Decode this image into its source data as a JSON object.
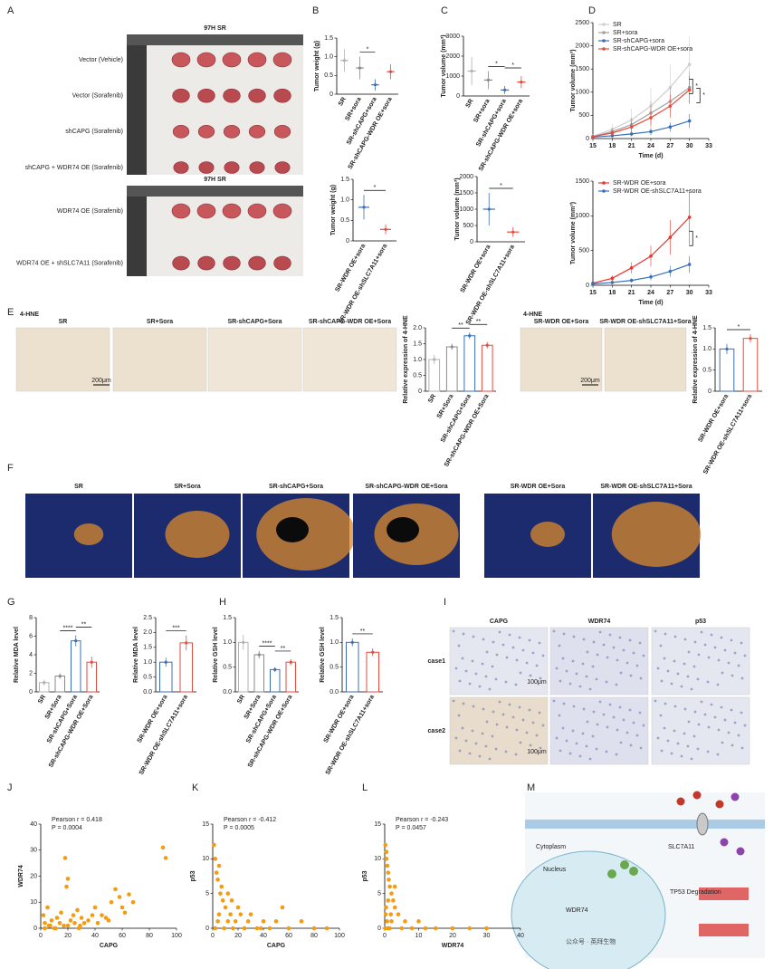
{
  "figure": {
    "panel_labels": [
      "A",
      "B",
      "C",
      "D",
      "E",
      "F",
      "G",
      "H",
      "I",
      "J",
      "K",
      "L",
      "M"
    ],
    "a": {
      "titles": [
        "97H SR",
        "97H SR"
      ],
      "rows": [
        "Vector (Vehicle)",
        "Vector (Sorafenib)",
        "shCAPG (Sorafenib)",
        "shCAPG + WDR74 OE (Sorafenib)",
        "WDR74 OE (Sorafenib)",
        "WDR74 OE + shSLC7A11 (Sorafenib)"
      ]
    },
    "e": {
      "stain": [
        "4-HNE",
        "4-HNE"
      ],
      "images": [
        "SR",
        "SR+Sora",
        "SR-shCAPG+Sora",
        "SR-shCAPG-WDR OE+Sora",
        "SR-WDR OE+Sora",
        "SR-WDR OE-shSLC7A11+Sora"
      ],
      "scale": [
        "200μm",
        "200μm"
      ]
    },
    "f": {
      "images": [
        "SR",
        "SR+Sora",
        "SR-shCAPG+Sora",
        "SR-shCAPG-WDR OE+Sora",
        "SR-WDR OE+Sora",
        "SR-WDR OE-shSLC7A11+Sora"
      ]
    },
    "i": {
      "columns": [
        "CAPG",
        "WDR74",
        "p53"
      ],
      "rows": [
        "case1",
        "case2"
      ],
      "scale": [
        "100μm",
        "100μm"
      ]
    },
    "m": {
      "labels": [
        "Cytoplasm",
        "Nucleus",
        "TP53 Degradation",
        "SLC7A11",
        "WDR74"
      ]
    },
    "watermark": "公众号 · 英拜生物"
  },
  "chart_data": [
    {
      "type": "dot",
      "ylabel": "Tumor weight (g)",
      "categories": [
        "SR",
        "SR+sora",
        "SR-shCAPG+sora",
        "SR-shCAPG-WDR OE+sora"
      ],
      "values": [
        0.9,
        0.7,
        0.25,
        0.6
      ],
      "errors": [
        0.3,
        0.3,
        0.15,
        0.2
      ],
      "colors": [
        "#b0b0b0",
        "#8a8a8a",
        "#3a6fb5",
        "#e64b3c"
      ],
      "ylim": [
        0,
        1.5
      ],
      "yticks": [
        0,
        0.5,
        {
          "value": 1,
          "label": "1.0"
        },
        1.5
      ],
      "brackets": [
        {
          "label": "*",
          "pair": [
            1,
            2
          ]
        }
      ]
    },
    {
      "type": "dot",
      "ylabel": "Tumor weight (g)",
      "categories": [
        "SR-WDR OE+sora",
        "SR-WDR OE-shSLC7A11+sora"
      ],
      "values": [
        0.82,
        0.28
      ],
      "errors": [
        0.3,
        0.12
      ],
      "colors": [
        "#3a6fb5",
        "#e64b3c"
      ],
      "ylim": [
        0,
        1.5
      ],
      "yticks": [
        0,
        0.5,
        {
          "value": 1,
          "label": "1.0"
        },
        1.5
      ],
      "brackets": [
        {
          "label": "*",
          "pair": [
            0,
            1
          ]
        }
      ]
    },
    {
      "type": "dot",
      "ylabel": "Tumor volume (mm³)",
      "categories": [
        "SR",
        "SR+sora",
        "SR-shCAPG+sora",
        "SR-shCAPG-WDR OE+sora"
      ],
      "values": [
        1250,
        800,
        300,
        700
      ],
      "errors": [
        700,
        450,
        200,
        300
      ],
      "colors": [
        "#b0b0b0",
        "#8a8a8a",
        "#3a6fb5",
        "#e64b3c"
      ],
      "ylim": [
        0,
        3000
      ],
      "yticks": [
        0,
        1000,
        2000,
        3000
      ],
      "brackets": [
        {
          "label": "*",
          "pair": [
            1,
            2
          ]
        },
        {
          "label": "*",
          "pair": [
            2,
            3
          ]
        }
      ]
    },
    {
      "type": "dot",
      "ylabel": "Tumor volume (mm³)",
      "categories": [
        "SR-WDR OE+sora",
        "SR-WDR OE-shSLC7A11+sora"
      ],
      "values": [
        1000,
        300
      ],
      "errors": [
        500,
        150
      ],
      "colors": [
        "#3a6fb5",
        "#e64b3c"
      ],
      "ylim": [
        0,
        2000
      ],
      "yticks": [
        0,
        500,
        1000,
        1500,
        2000
      ],
      "brackets": [
        {
          "label": "*",
          "pair": [
            0,
            1
          ]
        }
      ]
    },
    {
      "type": "line",
      "xlabel": "Time (d)",
      "ylabel": "Tumor volume (mm³)",
      "x": [
        15,
        18,
        21,
        24,
        27,
        30
      ],
      "series": [
        {
          "name": "SR",
          "color": "#cfcfcf",
          "values": [
            50,
            200,
            400,
            700,
            1100,
            1600
          ],
          "errors": [
            30,
            120,
            250,
            400,
            500,
            600
          ]
        },
        {
          "name": "SR+sora",
          "color": "#a0a0a0",
          "values": [
            40,
            150,
            300,
            550,
            800,
            1100
          ],
          "errors": [
            20,
            80,
            150,
            250,
            300,
            350
          ]
        },
        {
          "name": "SR-shCAPG+sora",
          "color": "#3a6fb5",
          "values": [
            30,
            60,
            100,
            150,
            250,
            380
          ],
          "errors": [
            10,
            30,
            50,
            80,
            100,
            150
          ]
        },
        {
          "name": "SR-shCAPG-WDR OE+sora",
          "color": "#e64b3c",
          "values": [
            40,
            120,
            250,
            450,
            700,
            1050
          ],
          "errors": [
            20,
            60,
            120,
            200,
            250,
            300
          ]
        }
      ],
      "xlim": [
        15,
        33
      ],
      "xticks": [
        15,
        18,
        21,
        24,
        27,
        30,
        33
      ],
      "ylim": [
        0,
        2500
      ],
      "yticks": [
        0,
        500,
        1000,
        1500,
        2000,
        2500
      ],
      "annotations": [
        "*",
        "*"
      ]
    },
    {
      "type": "line",
      "xlabel": "Time (d)",
      "ylabel": "Tumor volume (mm³)",
      "x": [
        15,
        18,
        21,
        24,
        27,
        30
      ],
      "series": [
        {
          "name": "SR-WDR OE+sora",
          "color": "#e8342c",
          "values": [
            30,
            100,
            250,
            420,
            690,
            980
          ],
          "errors": [
            20,
            40,
            80,
            150,
            250,
            400
          ]
        },
        {
          "name": "SR-WDR OE-shSLC7A11+sora",
          "color": "#3a6fb5",
          "values": [
            20,
            40,
            70,
            120,
            200,
            300
          ],
          "errors": [
            10,
            20,
            30,
            50,
            80,
            120
          ]
        }
      ],
      "xlim": [
        15,
        33
      ],
      "xticks": [
        15,
        18,
        21,
        24,
        27,
        30,
        33
      ],
      "ylim": [
        0,
        1500
      ],
      "yticks": [
        0,
        500,
        1000,
        1500
      ],
      "annotations": [
        "*"
      ]
    },
    {
      "type": "bar",
      "ylabel": "Relative expression of 4-HNE",
      "categories": [
        "SR",
        "SR+Sora",
        "SR-shCAPG+Sora",
        "SR-shCAPG-WDR OE+Sora"
      ],
      "values": [
        1.0,
        1.4,
        1.75,
        1.45
      ],
      "errors": [
        0.15,
        0.1,
        0.1,
        0.1
      ],
      "colors": [
        "#b0b0b0",
        "#8a8a8a",
        "#3a6fb5",
        "#e64b3c"
      ],
      "ylim": [
        0,
        2
      ],
      "yticks": [
        0,
        0.5,
        {
          "value": 1,
          "label": "1.0"
        },
        1.5,
        {
          "value": 2,
          "label": "2.0"
        }
      ],
      "brackets": [
        {
          "label": "**",
          "pair": [
            1,
            2
          ]
        },
        {
          "label": "**",
          "pair": [
            2,
            3
          ]
        }
      ]
    },
    {
      "type": "bar",
      "ylabel": "Relative expression of 4-HNE",
      "categories": [
        "SR-WDR OE+sora",
        "SR-WDR OE-shSLC7A11+sora"
      ],
      "values": [
        1.0,
        1.25
      ],
      "errors": [
        0.12,
        0.1
      ],
      "colors": [
        "#3a6fb5",
        "#e64b3c"
      ],
      "ylim": [
        0,
        1.5
      ],
      "yticks": [
        0,
        0.5,
        {
          "value": 1,
          "label": "1.0"
        },
        1.5
      ],
      "brackets": [
        {
          "label": "*",
          "pair": [
            0,
            1
          ]
        }
      ]
    },
    {
      "type": "bar",
      "ylabel": "Relative MDA level",
      "categories": [
        "SR",
        "SR+Sora",
        "SR-shCAPG+Sora",
        "SR-shCAPG-WDR OE+Sora"
      ],
      "values": [
        1.0,
        1.7,
        5.5,
        3.2
      ],
      "errors": [
        0.3,
        0.3,
        0.6,
        0.6
      ],
      "colors": [
        "#b0b0b0",
        "#8a8a8a",
        "#3a6fb5",
        "#e64b3c"
      ],
      "ylim": [
        0,
        8
      ],
      "yticks": [
        0,
        2,
        4,
        6,
        8
      ],
      "brackets": [
        {
          "label": "****",
          "pair": [
            1,
            2
          ]
        },
        {
          "label": "**",
          "pair": [
            2,
            3
          ]
        }
      ]
    },
    {
      "type": "bar",
      "ylabel": "Relative MDA level",
      "categories": [
        "SR-WDR OE+sora",
        "SR-WDR OE-shSLC7A11+sora"
      ],
      "values": [
        1.0,
        1.65
      ],
      "errors": [
        0.15,
        0.25
      ],
      "colors": [
        "#3a6fb5",
        "#e64b3c"
      ],
      "ylim": [
        0,
        2.5
      ],
      "yticks": [
        {
          "value": 0,
          "label": "0.0"
        },
        0.5,
        {
          "value": 1,
          "label": "1.0"
        },
        1.5,
        {
          "value": 2,
          "label": "2.0"
        },
        2.5
      ],
      "brackets": [
        {
          "label": "***",
          "pair": [
            0,
            1
          ]
        }
      ]
    },
    {
      "type": "bar",
      "ylabel": "Relative GSH level",
      "categories": [
        "SR",
        "SR+Sora",
        "SR-shCAPG+Sora",
        "SR-shCAPG-WDR OE+Sora"
      ],
      "values": [
        1.0,
        0.75,
        0.45,
        0.6
      ],
      "errors": [
        0.15,
        0.08,
        0.05,
        0.06
      ],
      "colors": [
        "#b0b0b0",
        "#8a8a8a",
        "#3a6fb5",
        "#e64b3c"
      ],
      "ylim": [
        0,
        1.5
      ],
      "yticks": [
        {
          "value": 0,
          "label": "0.0"
        },
        0.5,
        {
          "value": 1,
          "label": "1.0"
        },
        1.5
      ],
      "brackets": [
        {
          "label": "****",
          "pair": [
            1,
            2
          ]
        },
        {
          "label": "**",
          "pair": [
            2,
            3
          ]
        }
      ]
    },
    {
      "type": "bar",
      "ylabel": "Relative GSH level",
      "categories": [
        "SR-WDR OE+sora",
        "SR-WDR OE-shSLC7A11+sora"
      ],
      "values": [
        1.0,
        0.8
      ],
      "errors": [
        0.08,
        0.08
      ],
      "colors": [
        "#3a6fb5",
        "#e64b3c"
      ],
      "ylim": [
        0,
        1.5
      ],
      "yticks": [
        {
          "value": 0,
          "label": "0.0"
        },
        0.5,
        {
          "value": 1,
          "label": "1.0"
        },
        1.5
      ],
      "brackets": [
        {
          "label": "**",
          "pair": [
            0,
            1
          ]
        }
      ]
    },
    {
      "type": "scatter",
      "xlabel": "CAPG",
      "ylabel": "WDR74",
      "color": "#f39c12",
      "annotations": [
        "Pearson r = 0.418",
        "P = 0.0004"
      ],
      "x": [
        2,
        3,
        5,
        6,
        8,
        10,
        12,
        14,
        15,
        17,
        18,
        19,
        20,
        22,
        24,
        25,
        27,
        29,
        30,
        32,
        35,
        38,
        40,
        42,
        45,
        48,
        50,
        52,
        55,
        58,
        60,
        62,
        65,
        68,
        90,
        92,
        3,
        7,
        11,
        20,
        28
      ],
      "y": [
        5,
        2,
        8,
        1,
        3,
        0,
        4,
        2,
        6,
        1,
        27,
        16,
        19,
        3,
        5,
        2,
        7,
        1,
        4,
        2,
        3,
        5,
        8,
        2,
        5,
        4,
        3,
        10,
        15,
        12,
        8,
        6,
        13,
        10,
        31,
        27,
        0,
        1,
        0,
        1,
        0
      ],
      "xlim": [
        0,
        100
      ],
      "xticks": [
        0,
        20,
        40,
        60,
        80,
        100
      ],
      "ylim": [
        0,
        40
      ],
      "yticks": [
        0,
        10,
        20,
        30,
        40
      ]
    },
    {
      "type": "scatter",
      "xlabel": "CAPG",
      "ylabel": "p53",
      "color": "#f39c12",
      "annotations": [
        "Pearson r = -0.412",
        "P = 0.0005"
      ],
      "x": [
        1,
        2,
        3,
        4,
        5,
        6,
        7,
        8,
        10,
        12,
        14,
        15,
        18,
        20,
        22,
        25,
        28,
        30,
        35,
        40,
        45,
        50,
        55,
        60,
        70,
        80,
        90,
        2,
        4,
        9,
        16,
        25,
        38,
        5,
        12
      ],
      "y": [
        12,
        10,
        8,
        7,
        9,
        5,
        6,
        4,
        3,
        5,
        2,
        4,
        1,
        3,
        2,
        0,
        1,
        2,
        0,
        1,
        0,
        1,
        3,
        0,
        1,
        0,
        0,
        0,
        1,
        0,
        0,
        0,
        0,
        2,
        1
      ],
      "xlim": [
        0,
        100
      ],
      "xticks": [
        0,
        20,
        40,
        60,
        80,
        100
      ],
      "ylim": [
        0,
        15
      ],
      "yticks": [
        0,
        5,
        10,
        15
      ]
    },
    {
      "type": "scatter",
      "xlabel": "WDR74",
      "ylabel": "p53",
      "color": "#f39c12",
      "annotations": [
        "Pearson r = -0.243",
        "P = 0.0457"
      ],
      "x": [
        0.2,
        0.5,
        0.8,
        1,
        1.2,
        1.5,
        2,
        2.5,
        3,
        0.3,
        0.7,
        1,
        1.5,
        2,
        4,
        5,
        6,
        8,
        10,
        12,
        15,
        20,
        25,
        30,
        0.5,
        1,
        3,
        0.2,
        0.4,
        1.8
      ],
      "y": [
        12,
        10,
        9,
        8,
        7,
        6,
        5,
        4,
        3,
        2,
        1,
        0,
        0,
        1,
        2,
        0,
        1,
        0,
        1,
        0,
        0,
        0,
        0,
        0,
        11,
        4,
        6,
        0,
        3,
        2
      ],
      "xlim": [
        0,
        40
      ],
      "xticks": [
        0,
        10,
        20,
        30,
        40
      ],
      "ylim": [
        0,
        15
      ],
      "yticks": [
        0,
        5,
        10,
        15
      ]
    }
  ]
}
